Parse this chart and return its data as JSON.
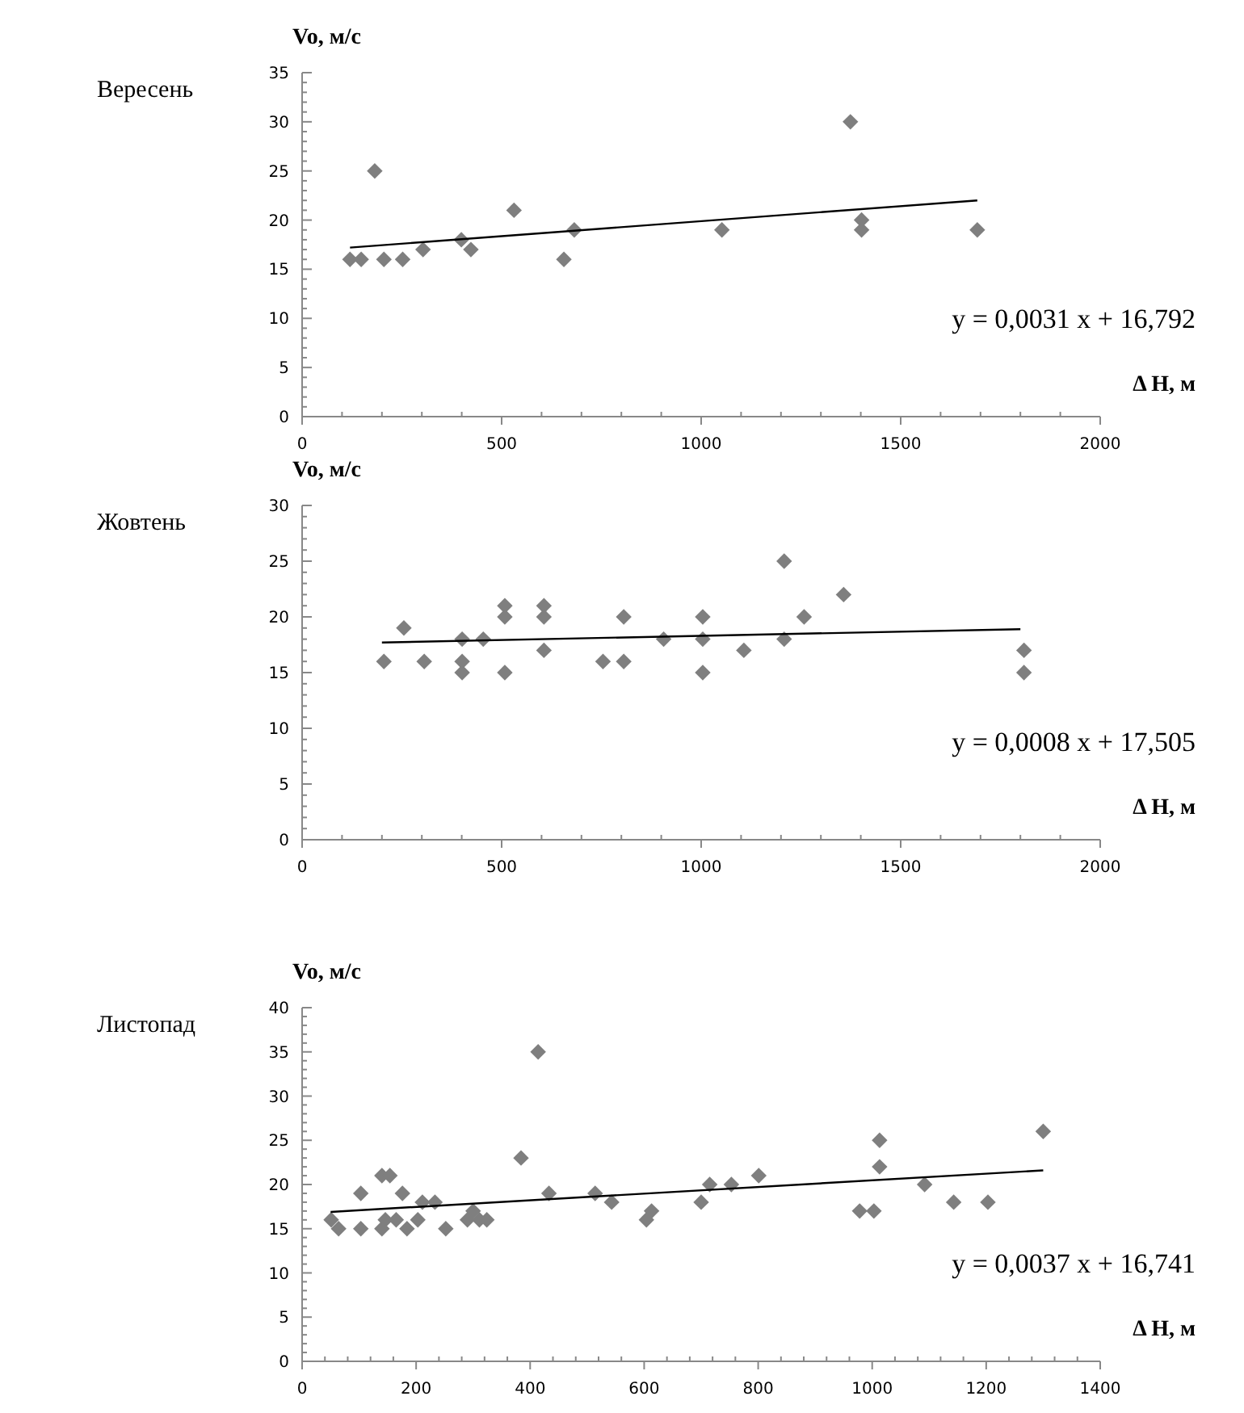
{
  "chart_data": [
    {
      "type": "scatter",
      "title": "Вересень",
      "xlabel": "Δ H, м",
      "ylabel": "Vo, м/с",
      "marker": "diamond",
      "xlim": [
        0,
        2000
      ],
      "xticks": [
        0,
        500,
        1000,
        1500,
        2000
      ],
      "ylim": [
        0,
        35
      ],
      "yticks": [
        0,
        5,
        10,
        15,
        20,
        25,
        30,
        35
      ],
      "annotations": [
        "y = 0,0031 x + 16,792"
      ],
      "series": [
        {
          "color": "#7f7f7f",
          "x": [
            120,
            148,
            182,
            205,
            252,
            303,
            399,
            423,
            531,
            656,
            682,
            1052,
            1374,
            1402,
            1402,
            1692
          ],
          "values": [
            16,
            16,
            25,
            16,
            16,
            17,
            18,
            17,
            21,
            16,
            19,
            19,
            30,
            20,
            19,
            19
          ]
        },
        {
          "type": "line",
          "color": "#000000",
          "marker": "none",
          "x": [
            120,
            1692
          ],
          "values": [
            17.2,
            22.0
          ]
        }
      ]
    },
    {
      "type": "scatter",
      "title": "Жовтень",
      "xlabel": "Δ H, м",
      "ylabel": "Vo, м/с",
      "marker": "diamond",
      "xlim": [
        0,
        2000
      ],
      "xticks": [
        0,
        500,
        1000,
        1500,
        2000
      ],
      "ylim": [
        0,
        30
      ],
      "yticks": [
        0,
        5,
        10,
        15,
        20,
        25,
        30
      ],
      "annotations": [
        "y = 0,0008 x + 17,505"
      ],
      "series": [
        {
          "color": "#7f7f7f",
          "x": [
            205,
            255,
            306,
            401,
            401,
            401,
            454,
            508,
            508,
            508,
            606,
            606,
            606,
            754,
            806,
            806,
            906,
            1004,
            1004,
            1004,
            1107,
            1208,
            1208,
            1258,
            1357,
            1809,
            1809
          ],
          "values": [
            16,
            19,
            16,
            18,
            16,
            15,
            18,
            21,
            20,
            15,
            21,
            20,
            17,
            16,
            20,
            16,
            18,
            20,
            18,
            15,
            17,
            25,
            18,
            20,
            22,
            17,
            15
          ]
        },
        {
          "type": "line",
          "color": "#000000",
          "marker": "none",
          "x": [
            200,
            1800
          ],
          "values": [
            17.7,
            18.9
          ]
        }
      ]
    },
    {
      "type": "scatter",
      "title": "Листопад",
      "xlabel": "Δ H, м",
      "ylabel": "Vo, м/с",
      "marker": "diamond",
      "xlim": [
        0,
        1400
      ],
      "xticks": [
        0,
        200,
        400,
        600,
        800,
        1000,
        1200,
        1400
      ],
      "ylim": [
        0,
        40
      ],
      "yticks": [
        0,
        5,
        10,
        15,
        20,
        25,
        30,
        35,
        40
      ],
      "annotations": [
        "y = 0,0037 x + 16,741"
      ],
      "series": [
        {
          "color": "#7f7f7f",
          "x": [
            51,
            64,
            103,
            103,
            140,
            154,
            140,
            146,
            165,
            176,
            184,
            203,
            211,
            233,
            252,
            290,
            300,
            311,
            324,
            384,
            414,
            433,
            514,
            543,
            604,
            613,
            700,
            715,
            753,
            801,
            978,
            1003,
            1013,
            1013,
            1092,
            1143,
            1203,
            1300
          ],
          "values": [
            16,
            15,
            19,
            15,
            21,
            21,
            15,
            16,
            16,
            19,
            15,
            16,
            18,
            18,
            15,
            16,
            17,
            16,
            16,
            23,
            35,
            19,
            19,
            18,
            16,
            17,
            18,
            20,
            20,
            21,
            17,
            17,
            25,
            22,
            20,
            18,
            18,
            26
          ]
        },
        {
          "type": "line",
          "color": "#000000",
          "marker": "none",
          "x": [
            50,
            1300
          ],
          "values": [
            16.9,
            21.6
          ]
        }
      ]
    }
  ]
}
